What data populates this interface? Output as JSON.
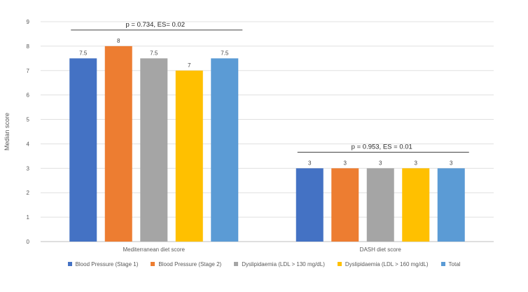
{
  "chart_data": {
    "type": "bar",
    "categories": [
      "Mediterranean diet score",
      "DASH diet score"
    ],
    "series": [
      {
        "name": "Blood Pressure (Stage 1)",
        "values": [
          7.5,
          3
        ],
        "color": "#4472C4"
      },
      {
        "name": "Blood Pressure (Stage 2)",
        "values": [
          8,
          3
        ],
        "color": "#ED7D31"
      },
      {
        "name": "Dyslipidaemia (LDL > 130 mg/dL)",
        "values": [
          7.5,
          3
        ],
        "color": "#A5A5A5"
      },
      {
        "name": "Dyslipidaemia (LDL > 160 mg/dL)",
        "values": [
          7,
          3
        ],
        "color": "#FFC000"
      },
      {
        "name": "Total",
        "values": [
          7.5,
          3
        ],
        "color": "#5B9BD5"
      }
    ],
    "data_labels": [
      [
        "7.5",
        "8",
        "7.5",
        "7",
        "7.5"
      ],
      [
        "3",
        "3",
        "3",
        "3",
        "3"
      ]
    ],
    "annotations": [
      "p = 0.734, ES= 0.02",
      "p = 0.953, ES = 0.01"
    ],
    "ylabel": "Median score",
    "ylim": [
      0,
      9
    ],
    "yticks": [
      "0",
      "1",
      "2",
      "3",
      "4",
      "5",
      "6",
      "7",
      "8",
      "9"
    ],
    "grid": true,
    "legend_position": "bottom"
  }
}
